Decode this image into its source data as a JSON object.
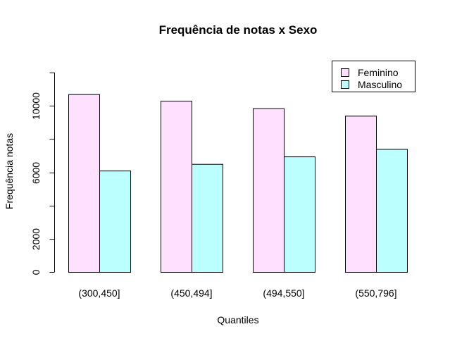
{
  "chart_data": {
    "type": "bar",
    "title": "Frequência de notas x Sexo",
    "xlabel": "Quantiles",
    "ylabel": "Frequência notas",
    "categories": [
      "(300,450]",
      "(450,494]",
      "(494,550]",
      "(550,796]"
    ],
    "series": [
      {
        "name": "Feminino",
        "values": [
          10700,
          10300,
          9850,
          9400
        ],
        "color": "#ffe0ff"
      },
      {
        "name": "Masculino",
        "values": [
          6100,
          6500,
          6950,
          7400
        ],
        "color": "#bbffff"
      }
    ],
    "ylim": [
      0,
      12000
    ],
    "yticks": [
      0,
      2000,
      4000,
      6000,
      8000,
      10000,
      12000
    ],
    "ytick_labels": [
      "0",
      "2000",
      "",
      "6000",
      "",
      "10000",
      ""
    ],
    "legend_position": "top-right",
    "grid": false
  }
}
